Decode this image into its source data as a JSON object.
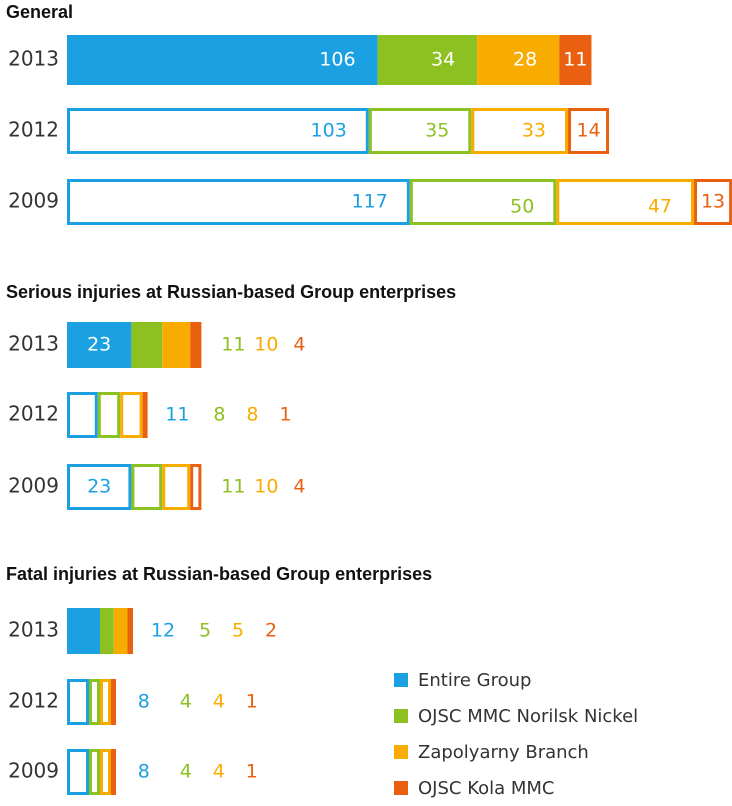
{
  "chart_data": [
    {
      "type": "bar",
      "title": "General",
      "categories": [
        "2013",
        "2012",
        "2009"
      ],
      "series": [
        {
          "name": "Entire Group",
          "values": [
            106,
            103,
            117
          ]
        },
        {
          "name": "OJSC MMC Norilsk Nickel",
          "values": [
            34,
            35,
            50
          ]
        },
        {
          "name": "Zapolyarny Branch",
          "values": [
            28,
            33,
            47
          ]
        },
        {
          "name": "OJSC Kola MMC",
          "values": [
            11,
            14,
            13
          ]
        }
      ]
    },
    {
      "type": "bar",
      "title": "Serious injuries at Russian-based Group enterprises",
      "categories": [
        "2013",
        "2012",
        "2009"
      ],
      "series": [
        {
          "name": "Entire Group",
          "values": [
            23,
            11,
            23
          ]
        },
        {
          "name": "OJSC MMC Norilsk Nickel",
          "values": [
            11,
            8,
            11
          ]
        },
        {
          "name": "Zapolyarny Branch",
          "values": [
            10,
            8,
            10
          ]
        },
        {
          "name": "OJSC Kola MMC",
          "values": [
            4,
            1,
            4
          ]
        }
      ]
    },
    {
      "type": "bar",
      "title": "Fatal injuries at Russian-based Group enterprises",
      "categories": [
        "2013",
        "2012",
        "2009"
      ],
      "series": [
        {
          "name": "Entire Group",
          "values": [
            12,
            8,
            8
          ]
        },
        {
          "name": "OJSC MMC Norilsk Nickel",
          "values": [
            5,
            4,
            4
          ]
        },
        {
          "name": "Zapolyarny Branch",
          "values": [
            5,
            4,
            4
          ]
        },
        {
          "name": "OJSC Kola MMC",
          "values": [
            2,
            1,
            1
          ]
        }
      ]
    }
  ],
  "colors": [
    "#1ba1e2",
    "#8dc021",
    "#f9ac00",
    "#ea6011"
  ],
  "legend": {
    "items": [
      {
        "label": "Entire Group",
        "color": "#1ba1e2"
      },
      {
        "label": "OJSC MMC Norilsk Nickel",
        "color": "#8dc021"
      },
      {
        "label": "Zapolyarny Branch",
        "color": "#f9ac00"
      },
      {
        "label": "OJSC Kola MMC",
        "color": "#ea6011"
      }
    ]
  }
}
